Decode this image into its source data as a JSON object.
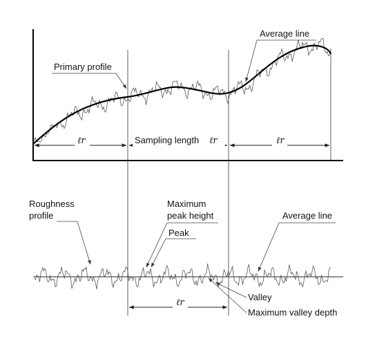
{
  "top_diagram": {
    "primary_profile_label": "Primary profile",
    "average_line_label": "Average line",
    "sampling_length_label": "Sampling length",
    "lr_labels": [
      "ℓr",
      "ℓr",
      "ℓr"
    ]
  },
  "bottom_diagram": {
    "roughness_profile_label_line1": "Roughness",
    "roughness_profile_label_line2": "profile",
    "max_peak_height_label_line1": "Maximum",
    "max_peak_height_label_line2": "peak height",
    "peak_label": "Peak",
    "average_line_label": "Average line",
    "valley_label": "Valley",
    "max_valley_depth_label": "Maximum valley depth",
    "lr_label": "ℓr"
  }
}
